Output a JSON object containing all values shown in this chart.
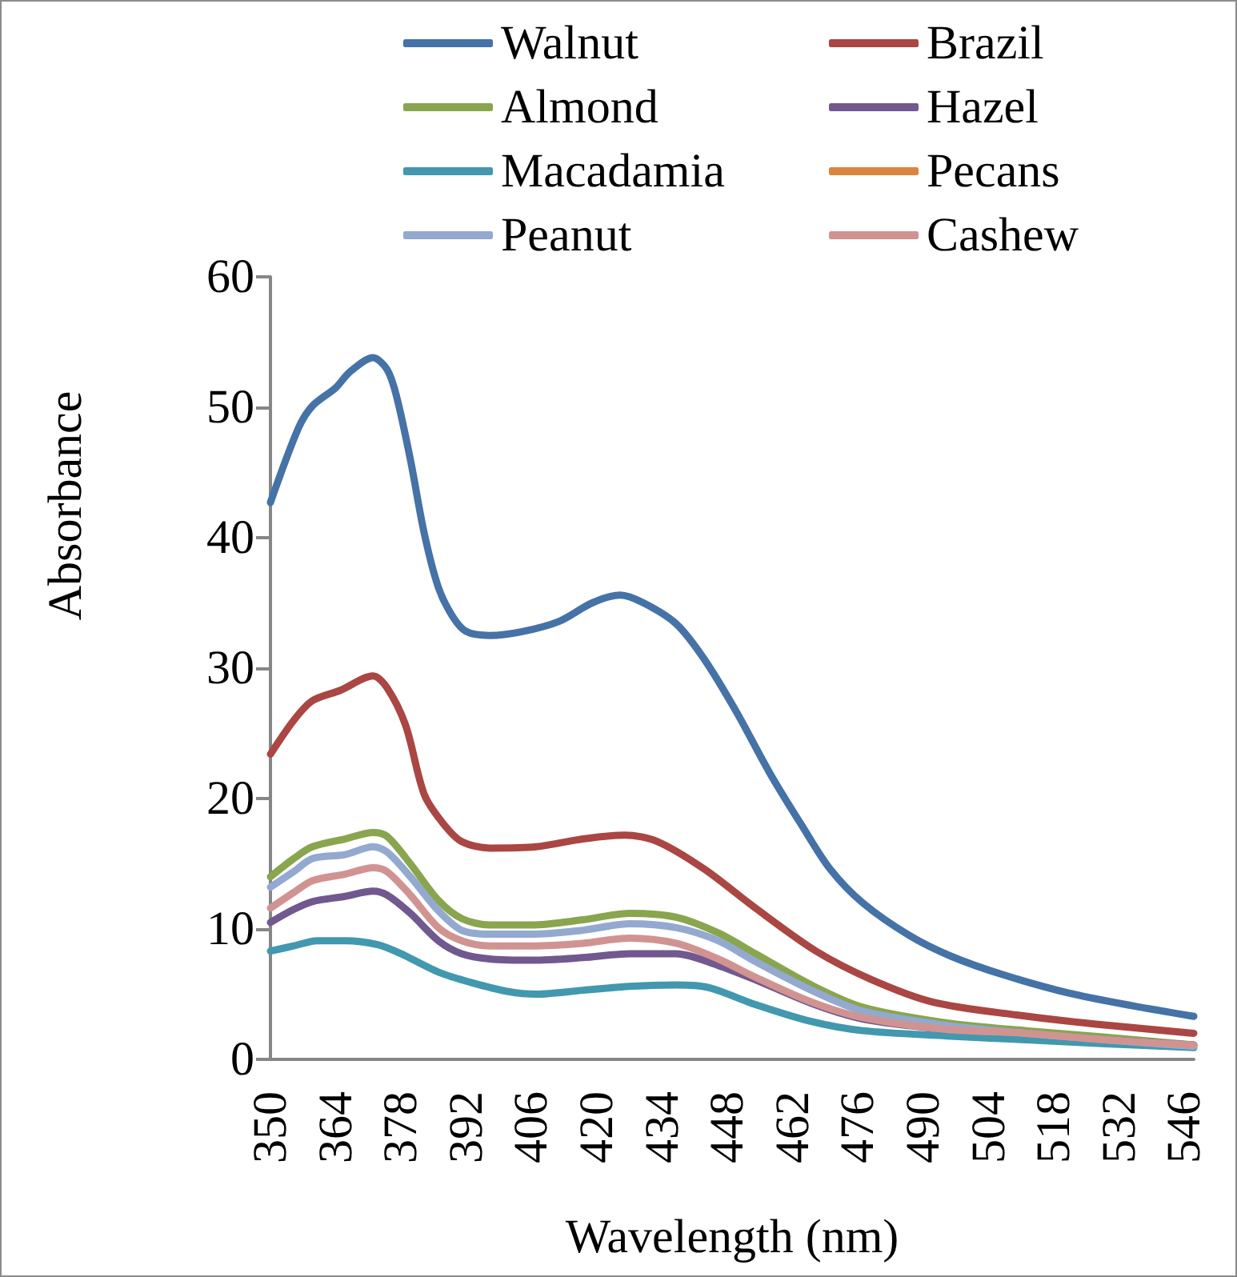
{
  "chart_data": {
    "type": "line",
    "xlabel": "Wavelength (nm)",
    "ylabel": "Absorbance",
    "xlim": [
      350,
      548
    ],
    "xticks": [
      350,
      364,
      378,
      392,
      406,
      420,
      434,
      448,
      462,
      476,
      490,
      504,
      518,
      532,
      546
    ],
    "ylim": [
      0,
      60
    ],
    "yticks": [
      0,
      10,
      20,
      30,
      40,
      50,
      60
    ],
    "legend": "top",
    "series": [
      {
        "name": "Walnut",
        "color": "#4572a7",
        "x": [
          350,
          356,
          359,
          364,
          367,
          372,
          375,
          377,
          380,
          383,
          386,
          389,
          392,
          397,
          404,
          412,
          419,
          425,
          430,
          437,
          443,
          450,
          457,
          464,
          470,
          477,
          487,
          496,
          507,
          521,
          535,
          548
        ],
        "values": [
          42.7,
          48.4,
          50.1,
          51.5,
          52.7,
          53.8,
          52.9,
          50.9,
          46.0,
          40.3,
          36.2,
          34.0,
          32.8,
          32.5,
          32.8,
          33.6,
          35.0,
          35.6,
          35.0,
          33.4,
          30.7,
          26.6,
          22.0,
          17.9,
          14.6,
          12.0,
          9.5,
          7.9,
          6.5,
          5.1,
          4.1,
          3.3
        ]
      },
      {
        "name": "Brazil",
        "color": "#aa4643",
        "x": [
          350,
          355,
          359,
          365,
          372,
          375,
          379,
          383,
          387,
          391,
          397,
          407,
          417,
          426,
          433,
          443,
          454,
          467,
          479,
          492,
          510,
          527,
          548
        ],
        "values": [
          23.4,
          26.0,
          27.5,
          28.3,
          29.4,
          28.5,
          25.6,
          20.3,
          18.1,
          16.7,
          16.2,
          16.3,
          16.9,
          17.2,
          16.7,
          14.6,
          11.6,
          8.3,
          6.1,
          4.4,
          3.4,
          2.7,
          2.0
        ]
      },
      {
        "name": "Almond",
        "color": "#89a54e",
        "x": [
          350,
          355,
          359,
          366,
          372,
          375,
          380,
          386,
          391,
          397,
          406,
          417,
          427,
          437,
          446,
          454,
          466,
          477,
          495,
          512,
          529,
          548
        ],
        "values": [
          14.0,
          15.4,
          16.3,
          16.9,
          17.4,
          17.1,
          15.0,
          12.2,
          10.8,
          10.3,
          10.3,
          10.7,
          11.2,
          10.9,
          9.7,
          8.1,
          5.7,
          4.0,
          2.8,
          2.2,
          1.7,
          1.1
        ]
      },
      {
        "name": "Hazel",
        "color": "#71588f",
        "x": [
          350,
          355,
          359,
          366,
          372,
          375,
          380,
          386,
          391,
          397,
          406,
          417,
          427,
          437,
          446,
          454,
          466,
          477,
          495,
          512,
          529,
          548
        ],
        "values": [
          10.5,
          11.5,
          12.1,
          12.5,
          12.9,
          12.6,
          11.2,
          9.1,
          8.1,
          7.7,
          7.6,
          7.8,
          8.1,
          8.1,
          7.2,
          6.1,
          4.3,
          3.1,
          2.3,
          1.9,
          1.5,
          1.1
        ]
      },
      {
        "name": "Macadamia",
        "color": "#4198af",
        "x": [
          350,
          355,
          360,
          366,
          373,
          378,
          386,
          393,
          401,
          407,
          417,
          427,
          437,
          444,
          454,
          466,
          477,
          495,
          512,
          529,
          548
        ],
        "values": [
          8.3,
          8.7,
          9.1,
          9.1,
          8.8,
          8.1,
          6.7,
          5.9,
          5.2,
          5.0,
          5.3,
          5.6,
          5.7,
          5.5,
          4.2,
          2.9,
          2.2,
          1.8,
          1.5,
          1.2,
          0.9
        ]
      },
      {
        "name": "Pecans",
        "color": "#db843d"
      },
      {
        "name": "Peanut",
        "color": "#93a9cf",
        "x": [
          350,
          355,
          359,
          366,
          372,
          375,
          380,
          386,
          391,
          397,
          406,
          417,
          427,
          437,
          446,
          454,
          466,
          477,
          495,
          512,
          529,
          548
        ],
        "values": [
          13.2,
          14.4,
          15.4,
          15.7,
          16.3,
          15.9,
          14.0,
          11.4,
          9.9,
          9.6,
          9.6,
          9.9,
          10.4,
          10.1,
          9.1,
          7.5,
          5.3,
          3.7,
          2.6,
          2.0,
          1.5,
          1.0
        ]
      },
      {
        "name": "Cashew",
        "color": "#d19392",
        "x": [
          350,
          355,
          359,
          366,
          372,
          375,
          380,
          386,
          391,
          397,
          406,
          417,
          427,
          437,
          446,
          454,
          466,
          477,
          495,
          512,
          529,
          548
        ],
        "values": [
          11.6,
          12.8,
          13.7,
          14.2,
          14.7,
          14.4,
          12.6,
          10.1,
          9.1,
          8.7,
          8.7,
          8.9,
          9.3,
          8.9,
          7.7,
          6.3,
          4.4,
          3.2,
          2.3,
          2.0,
          1.5,
          1.1
        ]
      }
    ]
  }
}
